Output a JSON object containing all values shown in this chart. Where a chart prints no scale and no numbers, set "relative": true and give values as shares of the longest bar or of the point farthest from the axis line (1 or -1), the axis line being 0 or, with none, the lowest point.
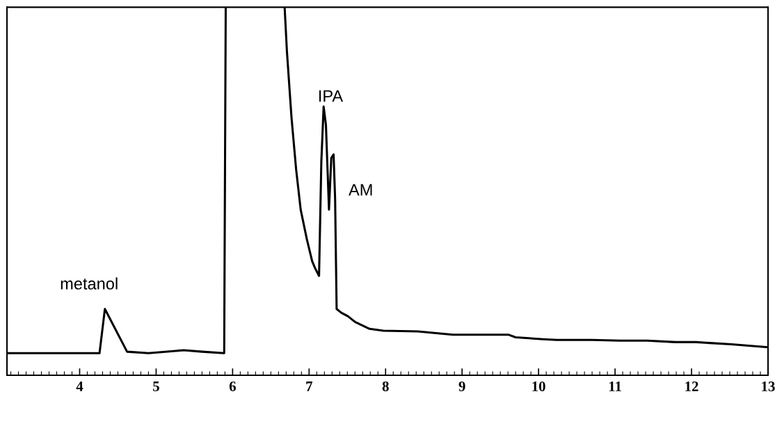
{
  "chart_data": {
    "type": "line",
    "relative": true,
    "tick_labels": "x",
    "grid": false,
    "legend": false,
    "marker": "none",
    "line_style": "solid",
    "xlim": [
      3.05,
      13
    ],
    "xticks": [
      4,
      5,
      6,
      7,
      8,
      9,
      10,
      11,
      12,
      13
    ],
    "series": [
      {
        "color": "#000000",
        "x": [
          3.05,
          4.26,
          4.33,
          4.62,
          4.9,
          5.36,
          5.6,
          5.89,
          5.91,
          6.3,
          6.68,
          6.71,
          6.77,
          6.83,
          6.89,
          6.97,
          7.04,
          7.08,
          7.13,
          7.16,
          7.19,
          7.22,
          7.26,
          7.29,
          7.32,
          7.34,
          7.36,
          7.42,
          7.51,
          7.6,
          7.79,
          7.97,
          8.42,
          8.88,
          9.61,
          9.7,
          10.06,
          10.24,
          10.7,
          11.06,
          11.42,
          11.79,
          12.06,
          12.52,
          13.0
        ],
        "values": [
          0.06,
          0.06,
          0.18,
          0.064,
          0.06,
          0.068,
          0.064,
          0.06,
          1,
          null,
          1,
          0.88,
          0.7,
          0.56,
          0.45,
          0.37,
          0.31,
          0.29,
          0.27,
          0.58,
          0.73,
          0.68,
          0.45,
          0.59,
          0.6,
          0.48,
          0.18,
          0.17,
          0.16,
          0.145,
          0.126,
          0.121,
          0.119,
          0.11,
          0.11,
          0.103,
          0.098,
          0.096,
          0.096,
          0.094,
          0.094,
          0.09,
          0.09,
          0.084,
          0.076
        ]
      }
    ],
    "annotations": [
      "metanol",
      "IPA",
      "AM"
    ]
  }
}
